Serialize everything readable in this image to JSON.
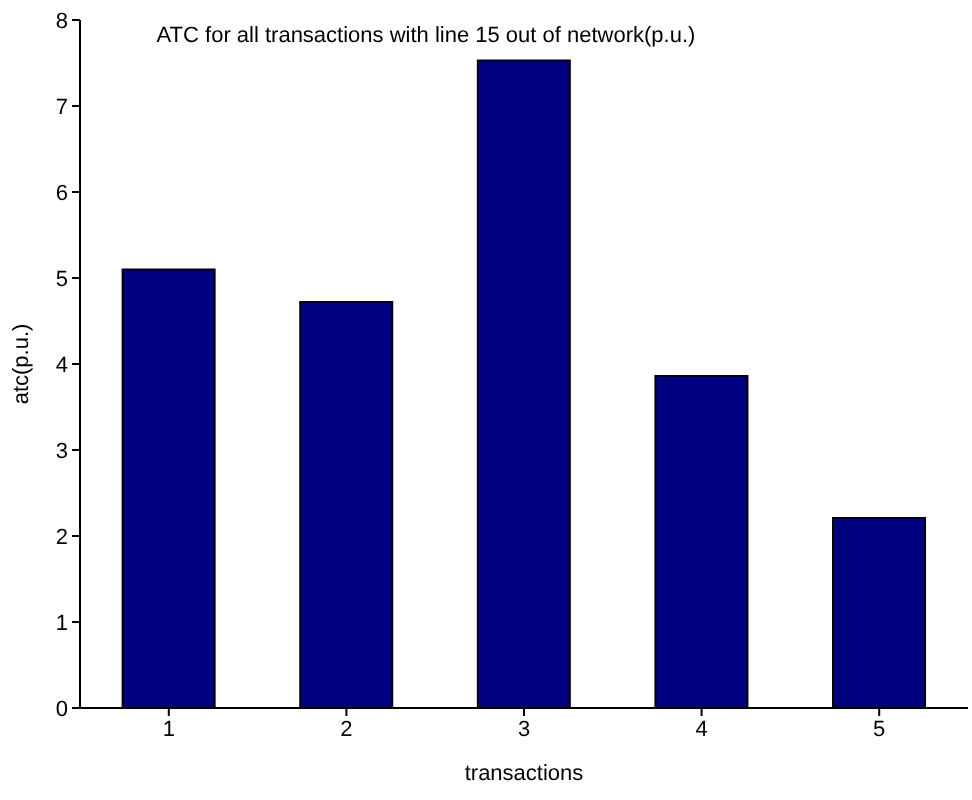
{
  "chart_data": {
    "type": "bar",
    "title": "ATC for all transactions with line 15 out of network(p.u.)",
    "xlabel": "transactions",
    "ylabel": "atc(p.u.)",
    "categories": [
      "1",
      "2",
      "3",
      "4",
      "5"
    ],
    "values": [
      5.1,
      4.72,
      7.53,
      3.86,
      2.21
    ],
    "color": "#000080",
    "ylim": [
      0,
      8
    ],
    "yticks": [
      0,
      1,
      2,
      3,
      4,
      5,
      6,
      7,
      8
    ],
    "grid": false,
    "legend": false
  }
}
